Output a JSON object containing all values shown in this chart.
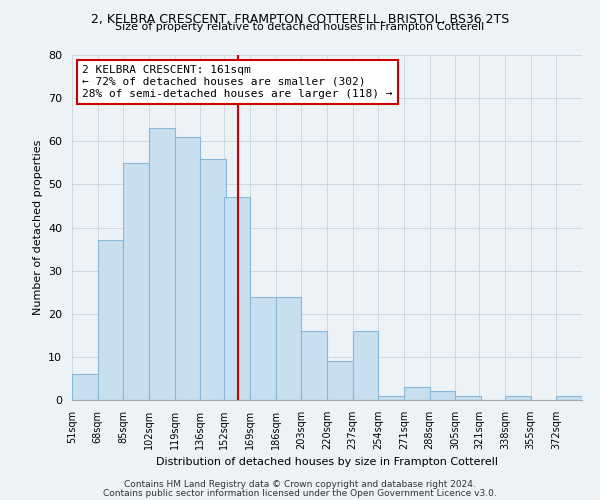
{
  "title": "2, KELBRA CRESCENT, FRAMPTON COTTERELL, BRISTOL, BS36 2TS",
  "subtitle": "Size of property relative to detached houses in Frampton Cotterell",
  "xlabel": "Distribution of detached houses by size in Frampton Cotterell",
  "ylabel": "Number of detached properties",
  "bar_edges": [
    51,
    68,
    85,
    102,
    119,
    136,
    152,
    169,
    186,
    203,
    220,
    237,
    254,
    271,
    288,
    305,
    321,
    338,
    355,
    372,
    389
  ],
  "bar_heights": [
    6,
    37,
    55,
    63,
    61,
    56,
    47,
    24,
    24,
    16,
    9,
    16,
    1,
    3,
    2,
    1,
    0,
    1,
    0,
    1
  ],
  "bar_color": "#c8dff0",
  "bar_edge_color": "#8ab8d8",
  "grid_color": "#d0d8e0",
  "vline_x": 161,
  "vline_color": "#cc0000",
  "annotation_line1": "2 KELBRA CRESCENT: 161sqm",
  "annotation_line2": "← 72% of detached houses are smaller (302)",
  "annotation_line3": "28% of semi-detached houses are larger (118) →",
  "annotation_box_color": "white",
  "annotation_box_edge_color": "#cc0000",
  "ylim": [
    0,
    80
  ],
  "yticks": [
    0,
    10,
    20,
    30,
    40,
    50,
    60,
    70,
    80
  ],
  "footnote1": "Contains HM Land Registry data © Crown copyright and database right 2024.",
  "footnote2": "Contains public sector information licensed under the Open Government Licence v3.0.",
  "bg_color": "#edf2f7"
}
